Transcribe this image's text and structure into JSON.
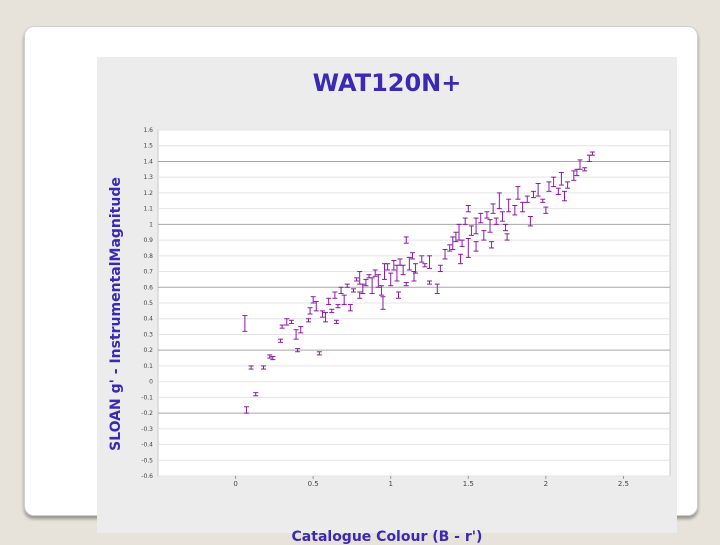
{
  "chart_data": {
    "type": "scatter",
    "title": "WAT120N+",
    "xlabel": "Catalogue Colour (B - r')",
    "ylabel": "SLOAN g' - InstrumentalMagnitude",
    "xlim": [
      -0.5,
      2.8
    ],
    "ylim": [
      -0.6,
      1.6
    ],
    "x_ticks": [
      "0",
      "0.5",
      "1",
      "1.5",
      "2",
      "2.5"
    ],
    "y_ticks": [
      "1.6",
      "1.5",
      "1.4",
      "1.3",
      "1.2",
      "1.1",
      "1",
      "0.9",
      "0.8",
      "0.7",
      "0.6",
      "0.5",
      "0.4",
      "0.3",
      "0.2",
      "0.1",
      "0",
      "-0.1",
      "-0.2",
      "-0.3",
      "-0.4",
      "-0.5",
      "-0.6"
    ],
    "major_gridlines_y": [
      1.4,
      1.0,
      0.6,
      0.2,
      -0.2
    ],
    "grid": true,
    "marker": "error-bar",
    "marker_color": "#8a1aa5",
    "points": [
      [
        0.06,
        0.37,
        0.05
      ],
      [
        0.07,
        -0.18,
        0.02
      ],
      [
        0.1,
        0.09,
        0.01
      ],
      [
        0.13,
        -0.08,
        0.01
      ],
      [
        0.18,
        0.09,
        0.01
      ],
      [
        0.22,
        0.16,
        0.01
      ],
      [
        0.24,
        0.15,
        0.01
      ],
      [
        0.29,
        0.26,
        0.01
      ],
      [
        0.3,
        0.35,
        0.01
      ],
      [
        0.33,
        0.38,
        0.02
      ],
      [
        0.36,
        0.38,
        0.01
      ],
      [
        0.39,
        0.3,
        0.03
      ],
      [
        0.4,
        0.2,
        0.01
      ],
      [
        0.47,
        0.39,
        0.01
      ],
      [
        0.48,
        0.45,
        0.02
      ],
      [
        0.5,
        0.52,
        0.02
      ],
      [
        0.52,
        0.48,
        0.03
      ],
      [
        0.54,
        0.18,
        0.01
      ],
      [
        0.56,
        0.43,
        0.02
      ],
      [
        0.58,
        0.41,
        0.03
      ],
      [
        0.6,
        0.51,
        0.02
      ],
      [
        0.62,
        0.45,
        0.01
      ],
      [
        0.64,
        0.55,
        0.02
      ],
      [
        0.66,
        0.48,
        0.01
      ],
      [
        0.68,
        0.58,
        0.02
      ],
      [
        0.7,
        0.52,
        0.03
      ],
      [
        0.72,
        0.61,
        0.01
      ],
      [
        0.74,
        0.47,
        0.02
      ],
      [
        0.76,
        0.58,
        0.01
      ],
      [
        0.78,
        0.65,
        0.01
      ],
      [
        0.8,
        0.55,
        0.02
      ],
      [
        0.8,
        0.66,
        0.04
      ],
      [
        0.82,
        0.59,
        0.03
      ],
      [
        0.84,
        0.63,
        0.02
      ],
      [
        0.86,
        0.67,
        0.01
      ],
      [
        0.88,
        0.61,
        0.05
      ],
      [
        0.9,
        0.69,
        0.02
      ],
      [
        0.92,
        0.64,
        0.04
      ],
      [
        0.94,
        0.58,
        0.03
      ],
      [
        0.96,
        0.7,
        0.05
      ],
      [
        0.98,
        0.73,
        0.02
      ],
      [
        1.0,
        0.65,
        0.04
      ],
      [
        1.02,
        0.74,
        0.03
      ],
      [
        1.04,
        0.69,
        0.05
      ],
      [
        1.06,
        0.76,
        0.02
      ],
      [
        1.08,
        0.71,
        0.03
      ],
      [
        1.1,
        0.62,
        0.01
      ],
      [
        1.12,
        0.75,
        0.04
      ],
      [
        1.14,
        0.8,
        0.02
      ],
      [
        1.16,
        0.72,
        0.03
      ],
      [
        1.2,
        0.78,
        0.02
      ],
      [
        1.22,
        0.74,
        0.01
      ],
      [
        1.25,
        0.76,
        0.04
      ],
      [
        1.3,
        0.59,
        0.03
      ],
      [
        1.35,
        0.81,
        0.03
      ],
      [
        1.38,
        0.85,
        0.02
      ],
      [
        1.4,
        0.88,
        0.04
      ],
      [
        1.42,
        0.92,
        0.03
      ],
      [
        1.44,
        0.95,
        0.05
      ],
      [
        1.46,
        0.88,
        0.02
      ],
      [
        1.48,
        1.02,
        0.02
      ],
      [
        1.5,
        0.85,
        0.06
      ],
      [
        1.52,
        0.96,
        0.03
      ],
      [
        1.55,
        0.99,
        0.05
      ],
      [
        1.58,
        1.04,
        0.03
      ],
      [
        1.6,
        0.93,
        0.03
      ],
      [
        1.62,
        1.06,
        0.02
      ],
      [
        1.64,
        0.99,
        0.04
      ],
      [
        1.66,
        1.1,
        0.03
      ],
      [
        1.68,
        1.02,
        0.02
      ],
      [
        1.7,
        1.15,
        0.05
      ],
      [
        1.72,
        1.05,
        0.03
      ],
      [
        1.74,
        0.98,
        0.02
      ],
      [
        1.76,
        1.12,
        0.04
      ],
      [
        1.8,
        1.09,
        0.03
      ],
      [
        1.82,
        1.2,
        0.04
      ],
      [
        1.85,
        1.11,
        0.03
      ],
      [
        1.88,
        1.16,
        0.02
      ],
      [
        1.92,
        1.19,
        0.02
      ],
      [
        1.95,
        1.22,
        0.04
      ],
      [
        1.98,
        1.15,
        0.01
      ],
      [
        2.02,
        1.24,
        0.03
      ],
      [
        2.05,
        1.27,
        0.03
      ],
      [
        2.08,
        1.21,
        0.02
      ],
      [
        2.1,
        1.29,
        0.04
      ],
      [
        2.14,
        1.25,
        0.02
      ],
      [
        2.18,
        1.31,
        0.03
      ],
      [
        2.2,
        1.33,
        0.02
      ],
      [
        2.22,
        1.38,
        0.03
      ],
      [
        2.25,
        1.35,
        0.01
      ],
      [
        2.28,
        1.42,
        0.02
      ],
      [
        2.3,
        1.45,
        0.01
      ],
      [
        0.42,
        0.33,
        0.02
      ],
      [
        0.65,
        0.38,
        0.01
      ],
      [
        0.95,
        0.5,
        0.04
      ],
      [
        1.05,
        0.55,
        0.02
      ],
      [
        1.15,
        0.67,
        0.03
      ],
      [
        1.25,
        0.63,
        0.01
      ],
      [
        1.32,
        0.72,
        0.02
      ],
      [
        1.45,
        0.78,
        0.03
      ],
      [
        1.55,
        0.86,
        0.03
      ],
      [
        1.65,
        0.87,
        0.02
      ],
      [
        1.75,
        0.92,
        0.02
      ],
      [
        1.9,
        1.02,
        0.03
      ],
      [
        2.0,
        1.09,
        0.02
      ],
      [
        2.12,
        1.18,
        0.03
      ],
      [
        1.1,
        0.9,
        0.02
      ],
      [
        1.5,
        1.1,
        0.02
      ]
    ]
  }
}
